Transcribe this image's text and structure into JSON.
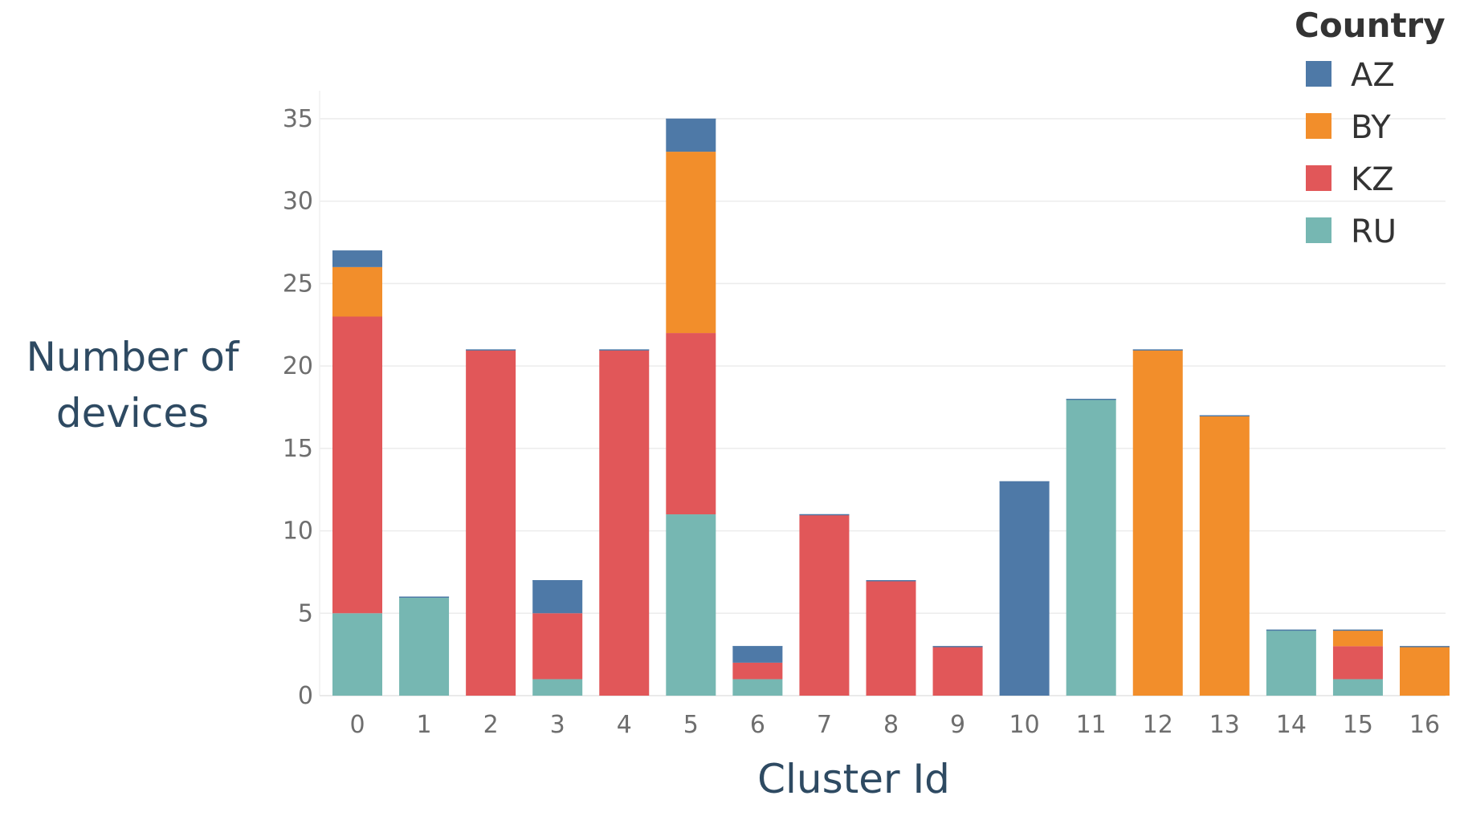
{
  "chart_data": {
    "type": "bar",
    "stacked": true,
    "xlabel": "Cluster Id",
    "ylabel_lines": [
      "Number of",
      "devices"
    ],
    "ylim": [
      0,
      35
    ],
    "yticks": [
      0,
      5,
      10,
      15,
      20,
      25,
      30,
      35
    ],
    "grid": true,
    "categories": [
      "0",
      "1",
      "2",
      "3",
      "4",
      "5",
      "6",
      "7",
      "8",
      "9",
      "10",
      "11",
      "12",
      "13",
      "14",
      "15",
      "16"
    ],
    "legend": {
      "title": "Country",
      "position": "top-right"
    },
    "series": [
      {
        "name": "RU",
        "color": "#76b7b2",
        "values": [
          5,
          6,
          0,
          1,
          0,
          11,
          1,
          0,
          0,
          0,
          0,
          18,
          0,
          0,
          4,
          1,
          0
        ]
      },
      {
        "name": "KZ",
        "color": "#e15759",
        "values": [
          18,
          0,
          21,
          4,
          21,
          11,
          1,
          11,
          7,
          3,
          0,
          0,
          0,
          0,
          0,
          2,
          0
        ]
      },
      {
        "name": "BY",
        "color": "#f28e2b",
        "values": [
          3,
          0,
          0,
          0,
          0,
          11,
          0,
          0,
          0,
          0,
          0,
          0,
          21,
          17,
          0,
          1,
          3
        ]
      },
      {
        "name": "AZ",
        "color": "#4e79a7",
        "values": [
          1,
          0,
          0,
          2,
          0,
          2,
          1,
          0,
          0,
          0,
          13,
          0,
          0,
          0,
          0,
          0,
          0
        ]
      }
    ],
    "legend_order": [
      "AZ",
      "BY",
      "KZ",
      "RU"
    ]
  }
}
